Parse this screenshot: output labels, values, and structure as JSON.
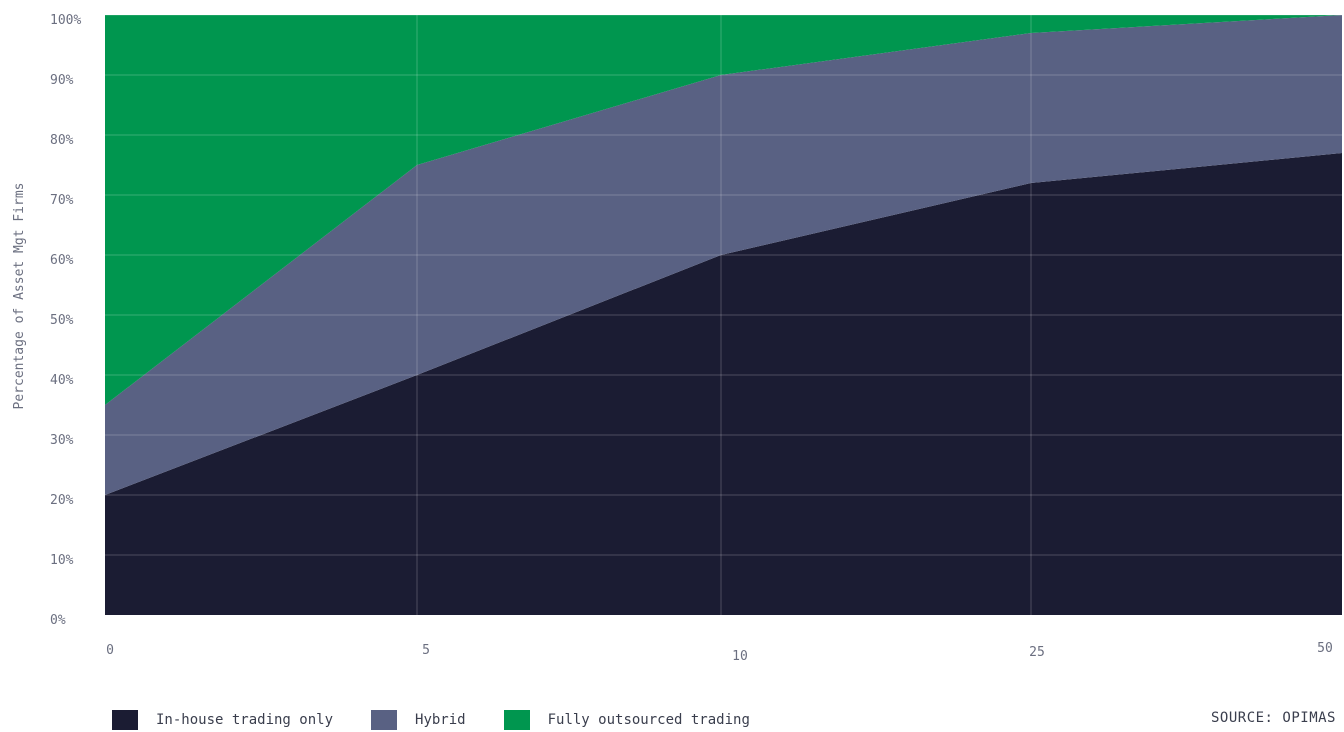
{
  "chart_data": {
    "type": "area",
    "stacked": true,
    "title": "",
    "xlabel": "",
    "ylabel": "Percentage of Asset Mgt Firms",
    "categories": [
      "0",
      "5",
      "10",
      "25",
      "50"
    ],
    "y_ticks": [
      "0%",
      "10%",
      "20%",
      "30%",
      "40%",
      "50%",
      "60%",
      "70%",
      "80%",
      "90%",
      "100%"
    ],
    "ylim": [
      0,
      100
    ],
    "series": [
      {
        "name": "In-house trading only",
        "color": "#1b1c33",
        "values": [
          20,
          40,
          60,
          72,
          77
        ]
      },
      {
        "name": "Hybrid",
        "color": "#596183",
        "values": [
          15,
          35,
          30,
          25,
          23
        ]
      },
      {
        "name": "Fully outsourced trading",
        "color": "#00964f",
        "values": [
          65,
          25,
          10,
          3,
          0
        ]
      }
    ],
    "grid": true,
    "legend_position": "bottom-left",
    "source": "SOURCE: OPIMAS"
  }
}
